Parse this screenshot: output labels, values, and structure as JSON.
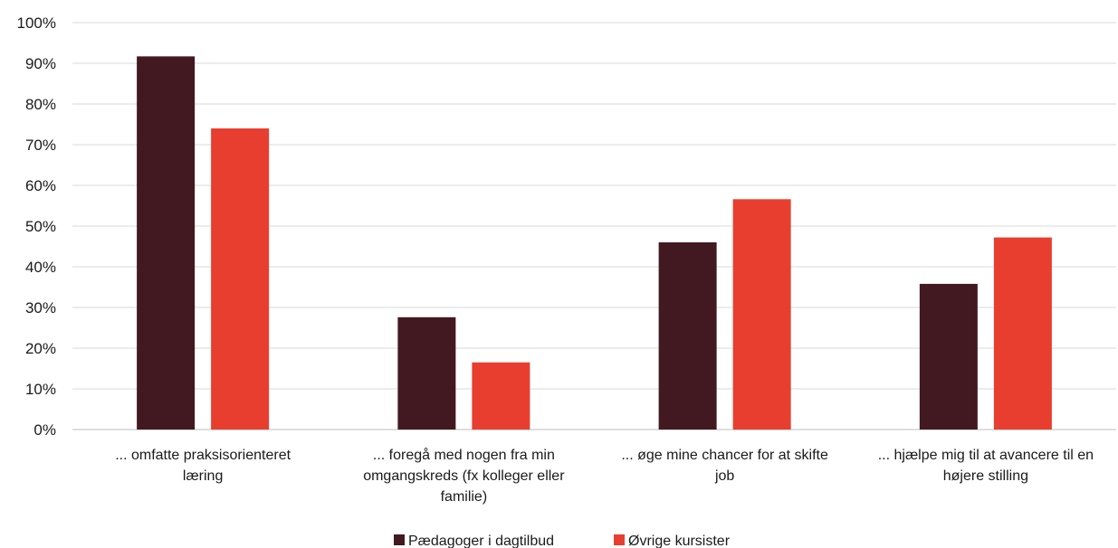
{
  "chart_data": {
    "type": "bar",
    "categories": [
      "... omfatte praksisorienteret læring",
      "... foregå med nogen fra min omgangskreds (fx kolleger eller familie)",
      "... øge mine chancer for at skifte job",
      "... hjælpe mig til at avancere til en højere stilling"
    ],
    "category_lines": [
      [
        "... omfatte praksisorienteret",
        "læring"
      ],
      [
        "... foregå med nogen fra min",
        "omgangskreds (fx kolleger eller",
        "familie)"
      ],
      [
        "... øge mine chancer for at skifte",
        "job"
      ],
      [
        "... hjælpe mig til at avancere til en",
        "højere stilling"
      ]
    ],
    "series": [
      {
        "name": "Pædagoger i dagtilbud",
        "values": [
          91.7,
          27.6,
          46.0,
          35.8
        ],
        "color": "#421921"
      },
      {
        "name": "Øvrige kursister",
        "values": [
          74.0,
          16.5,
          56.6,
          47.2
        ],
        "color": "#E83E2F"
      }
    ],
    "yticks": [
      "0%",
      "10%",
      "20%",
      "30%",
      "40%",
      "50%",
      "60%",
      "70%",
      "80%",
      "90%",
      "100%"
    ],
    "ylim": [
      0,
      100
    ],
    "grid": true,
    "legend_position": "bottom",
    "title": "",
    "xlabel": "",
    "ylabel": ""
  }
}
